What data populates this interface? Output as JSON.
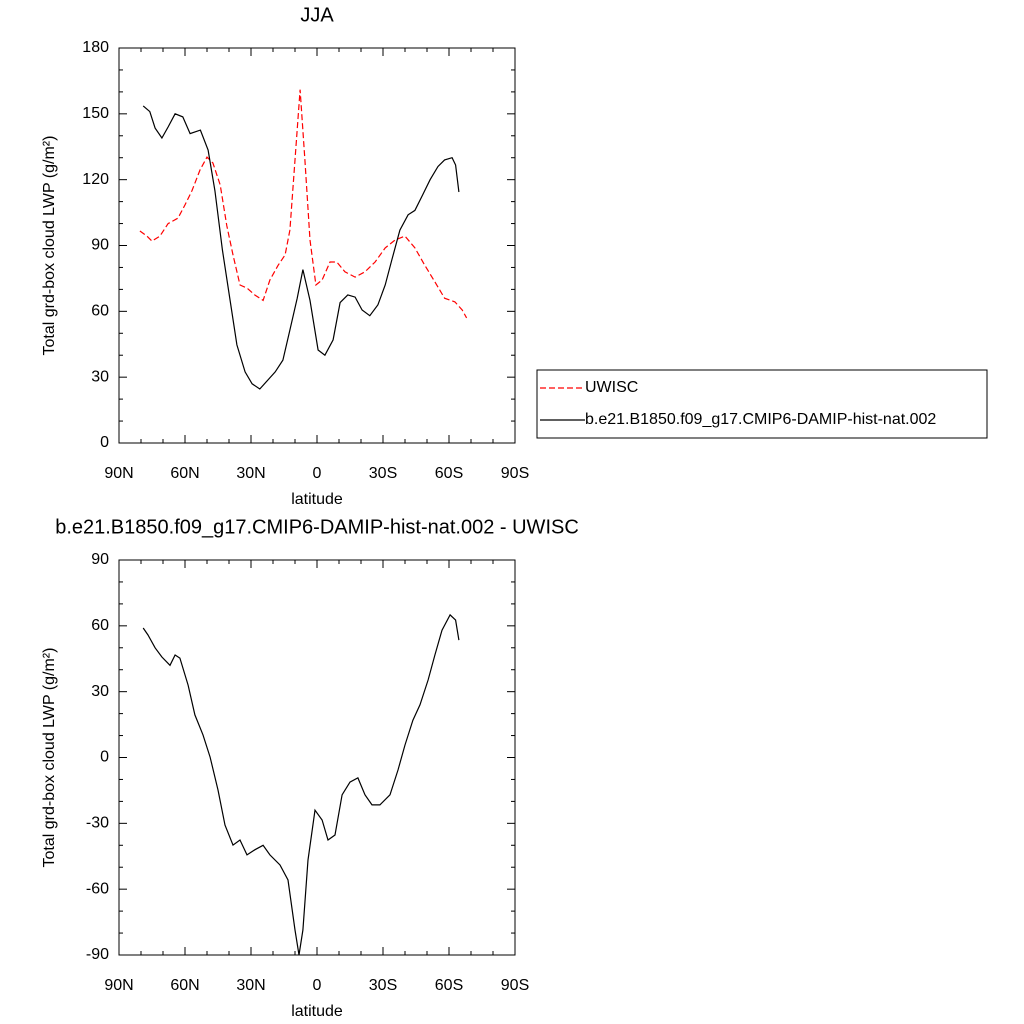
{
  "chart_data": [
    {
      "type": "line",
      "title": "JJA",
      "x_label": "latitude",
      "y_label": "Total grd-box cloud LWP (g/m²)",
      "xlim": [
        90,
        -90
      ],
      "xticks": [
        {
          "value": 90,
          "label": "90N"
        },
        {
          "value": 60,
          "label": "60N"
        },
        {
          "value": 30,
          "label": "30N"
        },
        0,
        {
          "value": -30,
          "label": "30S"
        },
        {
          "value": -60,
          "label": "60S"
        },
        {
          "value": -90,
          "label": "90S"
        }
      ],
      "ylim": [
        0,
        180
      ],
      "yticks": [
        0,
        30,
        60,
        90,
        120,
        150,
        180
      ],
      "legend": "right",
      "series": [
        {
          "name": "UWISC",
          "color": "#ff0000",
          "line_style": "dashed",
          "x": [
            80.5,
            77.3,
            75,
            71.4,
            67.7,
            63.2,
            60,
            56.8,
            53.2,
            50,
            47.3,
            44,
            41,
            38.2,
            35,
            31.8,
            28.2,
            24.5,
            21.4,
            17.7,
            14.5,
            12.3,
            10,
            7.7,
            5.5,
            3.2,
            0.5,
            -2.3,
            -5.9,
            -9,
            -12.7,
            -17.3,
            -21.8,
            -26.4,
            -31,
            -35.5,
            -40,
            -44.5,
            -49,
            -53.6,
            -58,
            -62.7,
            -66,
            -68
          ],
          "values": [
            96.6,
            94.3,
            92,
            94.3,
            100,
            102.5,
            108.5,
            115,
            124.4,
            130.3,
            127.6,
            117.6,
            99,
            85.7,
            72,
            70.6,
            67.4,
            65,
            74.3,
            81,
            85.7,
            97,
            129,
            161,
            129,
            92.5,
            72,
            74.3,
            82.5,
            82.5,
            78,
            75.6,
            78,
            82.5,
            88.9,
            92.5,
            94.3,
            88.9,
            81,
            73.4,
            66,
            64.3,
            60.6,
            57
          ]
        },
        {
          "name": "b.e21.B1850.f09_g17.CMIP6-DAMIP-hist-nat.002",
          "color": "#000000",
          "line_style": "solid",
          "x": [
            79,
            76,
            73.6,
            70.5,
            67.7,
            64.5,
            61,
            57.7,
            53,
            49.5,
            46.4,
            43,
            39.5,
            36.4,
            32.7,
            29.5,
            26,
            22.3,
            19,
            15.5,
            12.3,
            9,
            6.4,
            3.2,
            -0.5,
            -3.6,
            -7.3,
            -10.5,
            -14,
            -17.3,
            -20.5,
            -24,
            -27.7,
            -31,
            -34,
            -37.7,
            -41.4,
            -44.5,
            -48,
            -51.4,
            -55,
            -58,
            -61.4,
            -63,
            -64.5
          ],
          "values": [
            153.6,
            151,
            143.5,
            139,
            144,
            150,
            148.6,
            141,
            142.6,
            133.5,
            115,
            88,
            65,
            44.7,
            32.4,
            27,
            24.6,
            28.7,
            32.4,
            37.8,
            51.5,
            66,
            79,
            65,
            42.4,
            40,
            47,
            64,
            67.5,
            66.5,
            60.6,
            58,
            63,
            72,
            83.4,
            97,
            104,
            106,
            113,
            120,
            126,
            129,
            130,
            126.7,
            114.4
          ]
        }
      ]
    },
    {
      "type": "line",
      "title": "b.e21.B1850.f09_g17.CMIP6-DAMIP-hist-nat.002 - UWISC",
      "x_label": "latitude",
      "y_label": "Total grd-box cloud LWP (g/m²)",
      "xlim": [
        90,
        -90
      ],
      "xticks": [
        {
          "value": 90,
          "label": "90N"
        },
        {
          "value": 60,
          "label": "60N"
        },
        {
          "value": 30,
          "label": "30N"
        },
        0,
        {
          "value": -30,
          "label": "30S"
        },
        {
          "value": -60,
          "label": "60S"
        },
        {
          "value": -90,
          "label": "90S"
        }
      ],
      "ylim": [
        -90,
        90
      ],
      "yticks": [
        -90,
        -60,
        -30,
        0,
        30,
        60,
        90
      ],
      "series": [
        {
          "color": "#000000",
          "line_style": "solid",
          "x": [
            79,
            76.8,
            73.6,
            70.5,
            66.8,
            64.5,
            62.3,
            58.6,
            55.5,
            51.8,
            48.6,
            45,
            41.8,
            38.2,
            35,
            31.8,
            28.2,
            24.5,
            21.4,
            16.8,
            13.2,
            10,
            8.2,
            6.4,
            4.1,
            0.9,
            -2.3,
            -5,
            -8.2,
            -11.4,
            -15,
            -18.6,
            -21.8,
            -25,
            -28.6,
            -33.2,
            -36.8,
            -40,
            -43.6,
            -46.8,
            -50.5,
            -53.6,
            -56.8,
            -60.5,
            -63,
            -64.5
          ],
          "values": [
            59,
            55.8,
            50,
            45.8,
            42,
            46.7,
            45.3,
            33,
            19.4,
            10.3,
            0.2,
            -14.8,
            -30.8,
            -39.9,
            -37.6,
            -44.4,
            -42,
            -40,
            -44.4,
            -49,
            -55.8,
            -78.6,
            -90,
            -78.6,
            -46.7,
            -24,
            -28.5,
            -37.6,
            -35.3,
            -17,
            -11.2,
            -9.3,
            -17,
            -21.6,
            -21.6,
            -17,
            -5.7,
            5.7,
            17,
            24,
            35.3,
            46.7,
            58,
            65,
            62.6,
            53.5
          ]
        }
      ]
    }
  ]
}
